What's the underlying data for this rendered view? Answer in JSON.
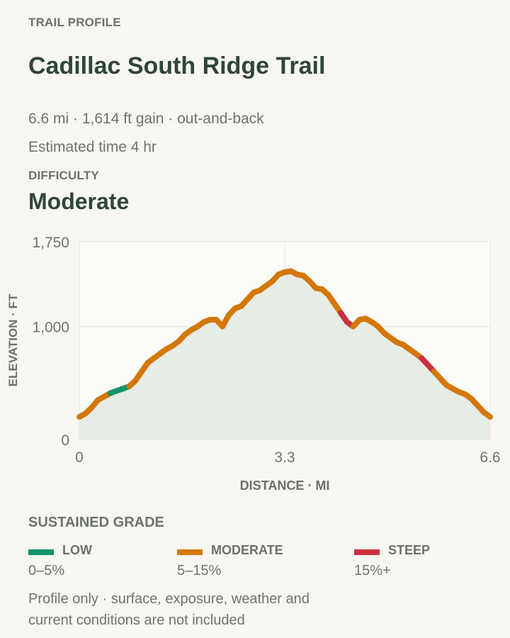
{
  "header": {
    "eyebrow": "TRAIL PROFILE",
    "title": "Cadillac South Ridge Trail",
    "stats": "6.6 mi · 1,614 ft gain · out-and-back",
    "time": "Estimated time 4 hr",
    "difficulty_label": "DIFFICULTY",
    "difficulty_value": "Moderate"
  },
  "chart_data": {
    "type": "line",
    "xlabel": "DISTANCE · MI",
    "ylabel": "ELEVATION · FT",
    "xlim": [
      0,
      6.6
    ],
    "ylim": [
      0,
      1750
    ],
    "xticks": [
      {
        "value": 0,
        "label": "0"
      },
      {
        "value": 3.3,
        "label": "3.3"
      },
      {
        "value": 6.6,
        "label": "6.6"
      }
    ],
    "yticks": [
      {
        "value": 0,
        "label": "0"
      },
      {
        "value": 1000,
        "label": "1,000"
      },
      {
        "value": 1750,
        "label": "1,750"
      }
    ],
    "grid": true,
    "fill": "#e6ece6",
    "series": [
      {
        "x": [
          0,
          0.1,
          0.2,
          0.3,
          0.4,
          0.5,
          0.6,
          0.7,
          0.8,
          0.9,
          1.0,
          1.1,
          1.2,
          1.3,
          1.4,
          1.5,
          1.6,
          1.7,
          1.8,
          1.9,
          2.0,
          2.1,
          2.2,
          2.3,
          2.4,
          2.5,
          2.6,
          2.7,
          2.8,
          2.9,
          3.0,
          3.1,
          3.2,
          3.3,
          3.4,
          3.5,
          3.6,
          3.7,
          3.8,
          3.9,
          4.0,
          4.1,
          4.2,
          4.3,
          4.4,
          4.5,
          4.6,
          4.7,
          4.8,
          4.9,
          5.0,
          5.1,
          5.2,
          5.3,
          5.4,
          5.5,
          5.6,
          5.7,
          5.8,
          5.9,
          6.0,
          6.1,
          6.2,
          6.3,
          6.4,
          6.5,
          6.6
        ],
        "y": [
          200,
          230,
          285,
          350,
          380,
          410,
          430,
          450,
          470,
          520,
          600,
          680,
          720,
          760,
          800,
          830,
          870,
          930,
          970,
          1000,
          1040,
          1060,
          1060,
          1000,
          1100,
          1160,
          1180,
          1240,
          1300,
          1320,
          1360,
          1400,
          1460,
          1480,
          1490,
          1460,
          1450,
          1400,
          1340,
          1330,
          1280,
          1200,
          1120,
          1040,
          1000,
          1060,
          1070,
          1040,
          1000,
          940,
          900,
          860,
          840,
          800,
          760,
          720,
          660,
          600,
          540,
          480,
          450,
          420,
          400,
          360,
          300,
          240,
          200
        ],
        "grade": [
          "moderate",
          "moderate",
          "moderate",
          "moderate",
          "moderate",
          "low",
          "low",
          "low",
          "moderate",
          "moderate",
          "moderate",
          "moderate",
          "moderate",
          "moderate",
          "moderate",
          "moderate",
          "moderate",
          "moderate",
          "moderate",
          "moderate",
          "moderate",
          "moderate",
          "moderate",
          "moderate",
          "moderate",
          "moderate",
          "moderate",
          "moderate",
          "moderate",
          "moderate",
          "moderate",
          "moderate",
          "moderate",
          "moderate",
          "moderate",
          "moderate",
          "moderate",
          "moderate",
          "moderate",
          "moderate",
          "moderate",
          "moderate",
          "steep",
          "steep",
          "moderate",
          "moderate",
          "moderate",
          "moderate",
          "moderate",
          "moderate",
          "moderate",
          "moderate",
          "moderate",
          "moderate",
          "moderate",
          "steep",
          "steep",
          "moderate",
          "moderate",
          "moderate",
          "moderate",
          "moderate",
          "moderate",
          "moderate",
          "moderate",
          "moderate"
        ]
      }
    ]
  },
  "legend": {
    "title": "SUSTAINED GRADE",
    "items": [
      {
        "key": "low",
        "label": "LOW",
        "range": "0–5%",
        "color": "#11946a"
      },
      {
        "key": "moderate",
        "label": "MODERATE",
        "range": "5–15%",
        "color": "#d4770a"
      },
      {
        "key": "steep",
        "label": "STEEP",
        "range": "15%+",
        "color": "#c8323e"
      }
    ]
  },
  "footnote": {
    "line1": "Profile only · surface, exposure, weather and",
    "line2": "current conditions are not included"
  }
}
